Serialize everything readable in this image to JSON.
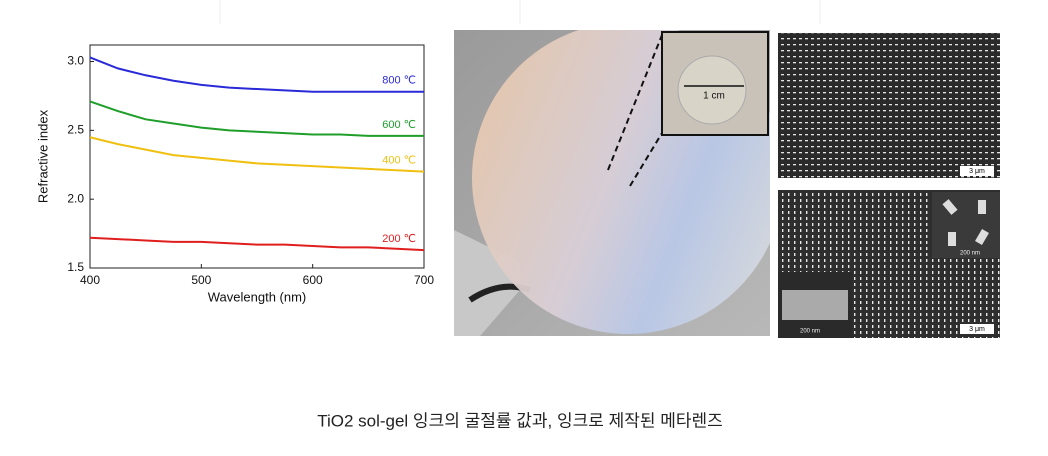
{
  "chart_data": {
    "type": "line",
    "x_label": "Wavelength (nm)",
    "y_label": "Refractive index",
    "x": [
      400,
      425,
      450,
      475,
      500,
      525,
      550,
      575,
      600,
      625,
      650,
      675,
      700
    ],
    "series": [
      {
        "name": "800 ℃",
        "color": "#2a2ad8",
        "values": [
          3.03,
          2.95,
          2.9,
          2.86,
          2.83,
          2.81,
          2.8,
          2.79,
          2.78,
          2.78,
          2.78,
          2.78,
          2.78
        ]
      },
      {
        "name": "600 ℃",
        "color": "#1f9e2a",
        "values": [
          2.71,
          2.64,
          2.58,
          2.55,
          2.52,
          2.5,
          2.49,
          2.48,
          2.47,
          2.47,
          2.46,
          2.46,
          2.46
        ]
      },
      {
        "name": "400 ℃",
        "color": "#f0c010",
        "values": [
          2.45,
          2.4,
          2.36,
          2.32,
          2.3,
          2.28,
          2.26,
          2.25,
          2.24,
          2.23,
          2.22,
          2.21,
          2.2
        ]
      },
      {
        "name": "200 ℃",
        "color": "#e01e1e",
        "values": [
          1.72,
          1.71,
          1.7,
          1.69,
          1.69,
          1.68,
          1.67,
          1.67,
          1.66,
          1.65,
          1.65,
          1.64,
          1.63
        ]
      }
    ],
    "xlim": [
      400,
      700
    ],
    "xticks": [
      400,
      500,
      600,
      700
    ],
    "ylim": [
      1.5,
      3.12
    ],
    "yticks": [
      1.5,
      {
        "value": 2,
        "label": "2.0"
      },
      2.5,
      {
        "value": 3,
        "label": "3.0"
      }
    ]
  },
  "figure_labels": {
    "inset_scale": "1 cm",
    "sem_top_scale": "3 μm",
    "sem_bottom_scale": "3 μm",
    "inset_top_scale": "200 nm",
    "inset_side_scale": "200 nm"
  },
  "caption": "TiO2 sol-gel 잉크의 굴절률 값과, 잉크로 제작된 메타렌즈"
}
